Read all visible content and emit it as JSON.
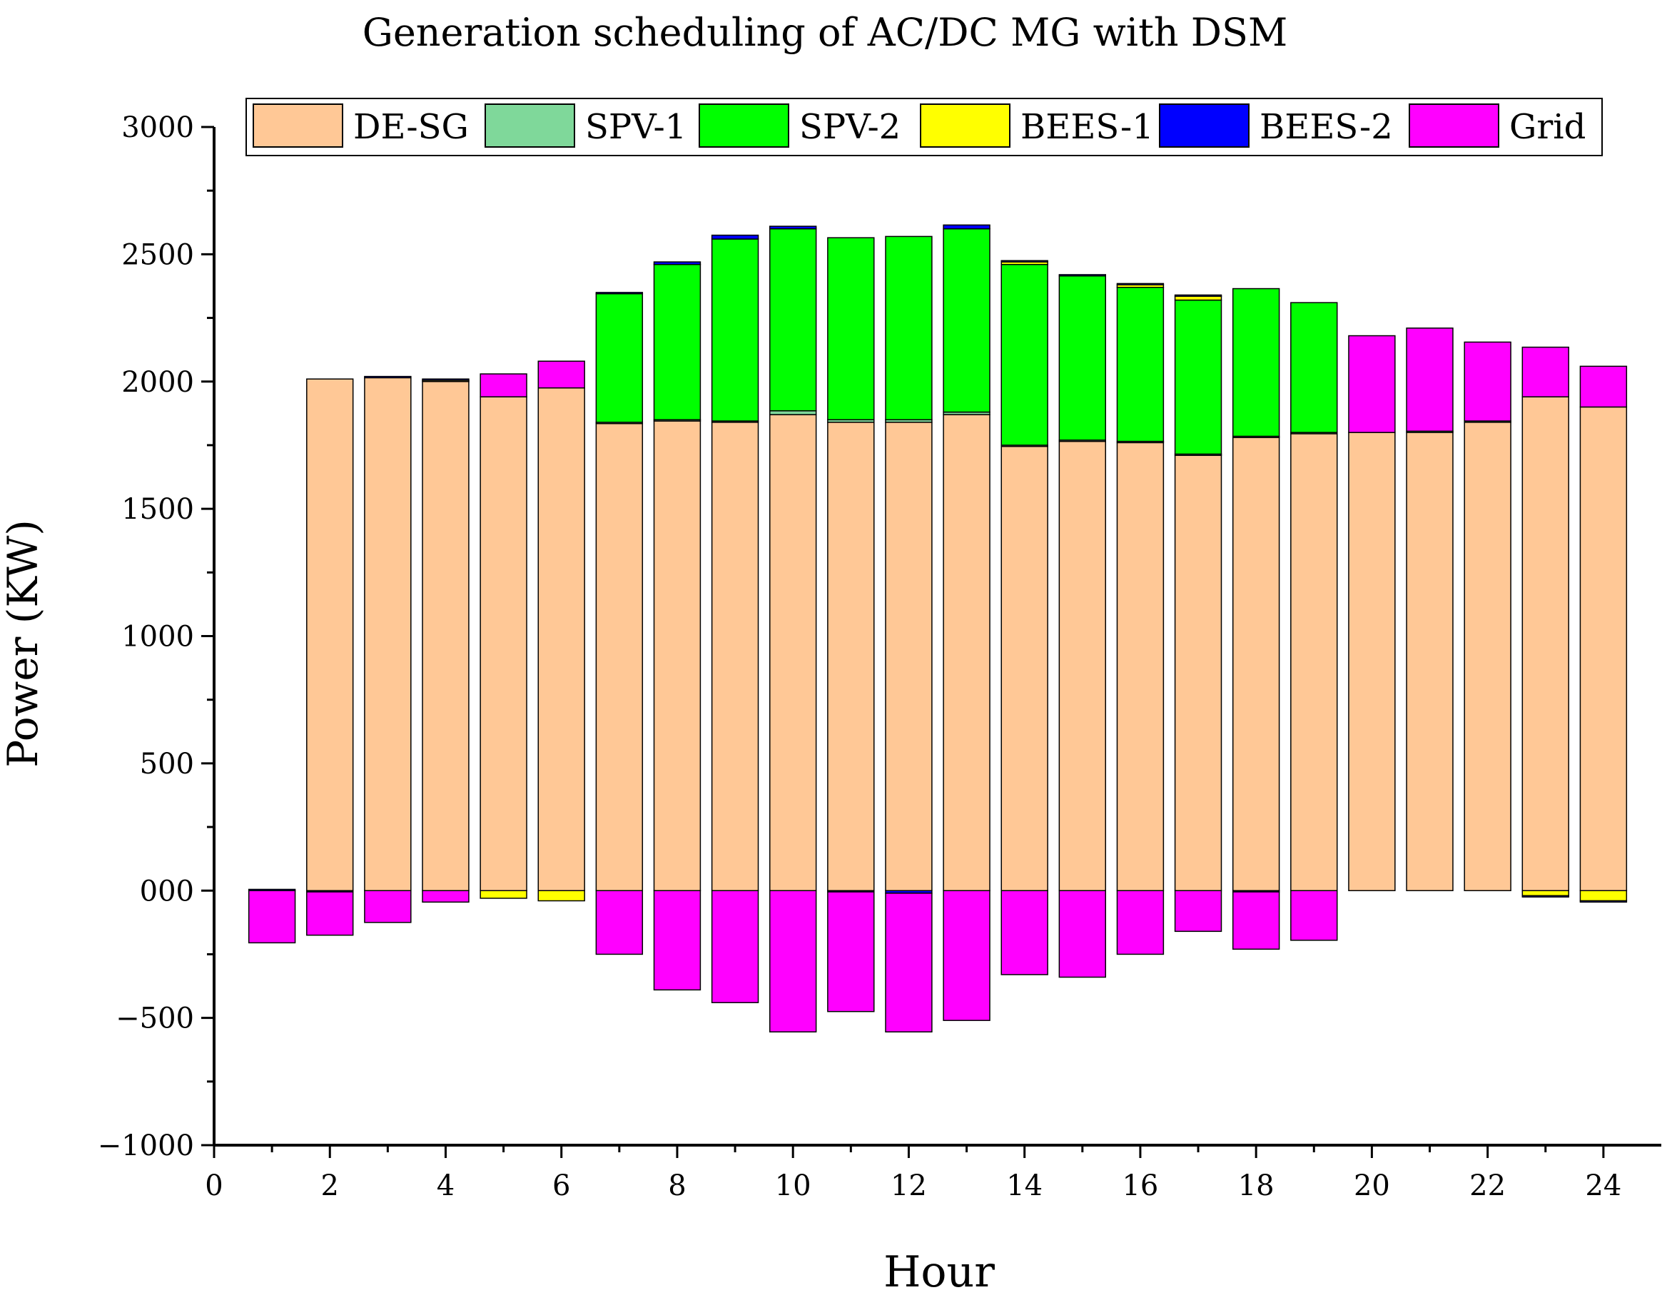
{
  "chart_data": {
    "type": "bar",
    "stacked": true,
    "title": "Generation scheduling of AC/DC MG with DSM",
    "xlabel": "Hour",
    "ylabel": "Power (KW)",
    "xlim": [
      0,
      25
    ],
    "ylim": [
      -1000,
      3000
    ],
    "xticks": [
      0,
      2,
      4,
      6,
      8,
      10,
      12,
      14,
      16,
      18,
      20,
      22,
      24
    ],
    "yticks": [
      -1000,
      -500,
      0,
      500,
      1000,
      1500,
      2000,
      2500,
      3000
    ],
    "ytick_labels": [
      "−1000",
      "−500",
      "000",
      "500",
      "1000",
      "1500",
      "2000",
      "2500",
      "3000"
    ],
    "legend_position": "top",
    "x": [
      1,
      2,
      3,
      4,
      5,
      6,
      7,
      8,
      9,
      10,
      11,
      12,
      13,
      14,
      15,
      16,
      17,
      18,
      19,
      20,
      21,
      22,
      23,
      24
    ],
    "series": [
      {
        "name": "DE-SG",
        "color": "#FFC896",
        "values": [
          0,
          2010,
          2015,
          2000,
          1940,
          1975,
          1835,
          1845,
          1840,
          1870,
          1840,
          1840,
          1870,
          1745,
          1765,
          1760,
          1710,
          1780,
          1795,
          1800,
          1800,
          1840,
          1940,
          1900
        ]
      },
      {
        "name": "SPV-1",
        "color": "#7FD89A",
        "values": [
          0,
          0,
          0,
          0,
          0,
          0,
          5,
          5,
          5,
          15,
          10,
          10,
          10,
          5,
          5,
          5,
          5,
          5,
          5,
          0,
          5,
          5,
          0,
          0
        ]
      },
      {
        "name": "SPV-2",
        "color": "#00FF00",
        "values": [
          0,
          0,
          0,
          0,
          0,
          0,
          505,
          610,
          715,
          715,
          715,
          720,
          720,
          710,
          645,
          605,
          605,
          580,
          510,
          0,
          0,
          0,
          0,
          0
        ]
      },
      {
        "name": "BEES-1",
        "color": "#FFFF00",
        "values": [
          0,
          0,
          0,
          5,
          -30,
          -40,
          0,
          0,
          0,
          0,
          0,
          0,
          0,
          10,
          0,
          10,
          15,
          0,
          0,
          0,
          0,
          0,
          -20,
          -40
        ]
      },
      {
        "name": "BEES-2",
        "color": "#0000FF",
        "values": [
          5,
          -5,
          5,
          5,
          0,
          0,
          5,
          10,
          15,
          10,
          -5,
          -10,
          15,
          5,
          5,
          5,
          5,
          -5,
          0,
          0,
          0,
          0,
          -5,
          -5
        ]
      },
      {
        "name": "Grid",
        "color": "#FF00FF",
        "values": [
          -205,
          -170,
          -125,
          -45,
          90,
          105,
          -250,
          -390,
          -440,
          -555,
          -470,
          -545,
          -510,
          -330,
          -340,
          -250,
          -160,
          -225,
          -195,
          380,
          405,
          310,
          195,
          160
        ]
      }
    ]
  }
}
